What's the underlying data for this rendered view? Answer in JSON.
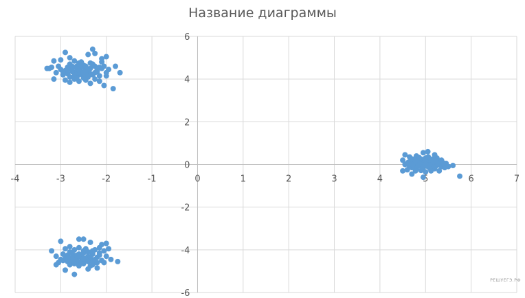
{
  "chart_data": {
    "type": "scatter",
    "title": "Название диаграммы",
    "xlim": [
      -4,
      7
    ],
    "ylim": [
      -6,
      6
    ],
    "x_ticks": [
      -4,
      -3,
      -2,
      -1,
      0,
      1,
      2,
      3,
      4,
      5,
      6,
      7
    ],
    "y_ticks": [
      -6,
      -4,
      -2,
      0,
      2,
      4,
      6
    ],
    "grid": true,
    "marker_color": "#5b9bd5",
    "series": [
      {
        "points": [
          [
            -2.55,
            4.35
          ],
          [
            -2.7,
            4.3
          ],
          [
            -2.45,
            4.45
          ],
          [
            -2.6,
            4.2
          ],
          [
            -2.4,
            4.3
          ],
          [
            -2.75,
            4.5
          ],
          [
            -2.5,
            4.15
          ],
          [
            -2.35,
            4.5
          ],
          [
            -2.85,
            4.25
          ],
          [
            -2.3,
            4.2
          ],
          [
            -2.65,
            4.6
          ],
          [
            -2.9,
            4.4
          ],
          [
            -2.2,
            4.35
          ],
          [
            -2.5,
            4.05
          ],
          [
            -2.8,
            4.1
          ],
          [
            -2.25,
            4.6
          ],
          [
            -3.0,
            4.45
          ],
          [
            -2.1,
            4.5
          ],
          [
            -2.95,
            4.2
          ],
          [
            -2.15,
            4.15
          ],
          [
            -2.6,
            4.75
          ],
          [
            -2.45,
            3.95
          ],
          [
            -2.7,
            4.0
          ],
          [
            -2.35,
            4.75
          ],
          [
            -3.1,
            4.3
          ],
          [
            -2.0,
            4.3
          ],
          [
            -2.55,
            4.55
          ],
          [
            -2.75,
            4.35
          ],
          [
            -2.4,
            4.1
          ],
          [
            -2.65,
            4.25
          ],
          [
            -2.85,
            4.55
          ],
          [
            -2.25,
            4.0
          ],
          [
            -3.05,
            4.6
          ],
          [
            -2.05,
            4.6
          ],
          [
            -2.9,
            3.95
          ],
          [
            -2.15,
            3.9
          ],
          [
            -2.5,
            4.65
          ],
          [
            -2.6,
            3.9
          ],
          [
            -2.8,
            4.7
          ],
          [
            -2.3,
            4.7
          ],
          [
            -3.2,
            4.55
          ],
          [
            -1.95,
            4.45
          ],
          [
            -3.3,
            4.5
          ],
          [
            -1.7,
            4.3
          ],
          [
            -2.9,
            5.25
          ],
          [
            -2.3,
            5.4
          ],
          [
            -2.0,
            5.05
          ],
          [
            -2.8,
            5.0
          ],
          [
            -2.4,
            5.15
          ],
          [
            -3.15,
            4.85
          ],
          [
            -1.8,
            4.6
          ],
          [
            -2.1,
            4.8
          ],
          [
            -2.35,
            3.8
          ],
          [
            -2.05,
            3.7
          ],
          [
            -1.85,
            3.55
          ],
          [
            -3.15,
            4.0
          ],
          [
            -2.8,
            3.85
          ],
          [
            -3.0,
            4.9
          ],
          [
            -2.65,
            4.5
          ],
          [
            -2.45,
            4.6
          ],
          [
            -2.2,
            4.45
          ],
          [
            -2.55,
            4.25
          ],
          [
            -2.7,
            4.15
          ],
          [
            -2.4,
            4.4
          ],
          [
            -2.95,
            4.35
          ],
          [
            -2.75,
            4.6
          ],
          [
            -2.25,
            4.3
          ],
          [
            -2.6,
            4.4
          ],
          [
            -2.5,
            4.3
          ],
          [
            -2.35,
            4.25
          ],
          [
            -2.85,
            4.45
          ],
          [
            -2.15,
            4.55
          ],
          [
            -2.65,
            4.05
          ],
          [
            -2.45,
            4.2
          ],
          [
            -3.25,
            4.5
          ],
          [
            -2.0,
            4.15
          ],
          [
            -2.55,
            4.8
          ],
          [
            -2.25,
            5.2
          ],
          [
            -2.7,
            4.85
          ],
          [
            -2.1,
            4.95
          ]
        ]
      },
      {
        "points": [
          [
            4.9,
            0.05
          ],
          [
            5.0,
            -0.05
          ],
          [
            4.8,
            0.1
          ],
          [
            5.1,
            0.1
          ],
          [
            4.95,
            0.15
          ],
          [
            5.05,
            -0.1
          ],
          [
            4.85,
            -0.05
          ],
          [
            5.15,
            0.0
          ],
          [
            4.75,
            0.0
          ],
          [
            5.2,
            0.05
          ],
          [
            4.7,
            0.15
          ],
          [
            5.25,
            -0.05
          ],
          [
            4.65,
            -0.1
          ],
          [
            5.3,
            0.1
          ],
          [
            4.6,
            0.05
          ],
          [
            5.35,
            -0.1
          ],
          [
            4.9,
            0.25
          ],
          [
            5.0,
            0.3
          ],
          [
            4.8,
            -0.2
          ],
          [
            5.1,
            -0.2
          ],
          [
            4.95,
            -0.15
          ],
          [
            5.05,
            0.2
          ],
          [
            4.85,
            0.2
          ],
          [
            5.15,
            0.25
          ],
          [
            4.75,
            0.25
          ],
          [
            5.2,
            -0.2
          ],
          [
            4.7,
            -0.15
          ],
          [
            5.4,
            0.0
          ],
          [
            4.55,
            0.0
          ],
          [
            5.45,
            0.05
          ],
          [
            4.5,
            0.2
          ],
          [
            5.5,
            -0.1
          ],
          [
            4.55,
            0.45
          ],
          [
            4.95,
            0.55
          ],
          [
            5.05,
            0.6
          ],
          [
            4.65,
            0.35
          ],
          [
            5.25,
            0.3
          ],
          [
            4.8,
            0.4
          ],
          [
            5.2,
            0.45
          ],
          [
            4.6,
            -0.25
          ],
          [
            4.7,
            -0.45
          ],
          [
            5.0,
            -0.35
          ],
          [
            5.3,
            -0.3
          ],
          [
            5.35,
            0.2
          ],
          [
            5.6,
            -0.05
          ],
          [
            5.75,
            -0.55
          ],
          [
            4.5,
            -0.3
          ],
          [
            4.95,
            -0.6
          ],
          [
            4.88,
            0.0
          ],
          [
            5.02,
            0.08
          ],
          [
            4.92,
            -0.12
          ],
          [
            5.12,
            0.15
          ],
          [
            4.78,
            0.18
          ],
          [
            5.08,
            -0.02
          ],
          [
            4.98,
            0.12
          ],
          [
            4.82,
            -0.08
          ],
          [
            5.18,
            -0.12
          ],
          [
            4.72,
            -0.02
          ],
          [
            5.28,
            0.02
          ],
          [
            4.62,
            0.1
          ],
          [
            5.38,
            0.08
          ],
          [
            5.42,
            -0.15
          ],
          [
            4.68,
            0.28
          ],
          [
            5.22,
            0.18
          ],
          [
            4.86,
            0.32
          ],
          [
            5.06,
            0.35
          ],
          [
            4.9,
            -0.28
          ],
          [
            5.12,
            -0.3
          ],
          [
            4.78,
            -0.3
          ],
          [
            5.0,
            0.0
          ]
        ]
      },
      {
        "points": [
          [
            -2.55,
            -4.35
          ],
          [
            -2.7,
            -4.3
          ],
          [
            -2.45,
            -4.45
          ],
          [
            -2.6,
            -4.2
          ],
          [
            -2.4,
            -4.3
          ],
          [
            -2.75,
            -4.5
          ],
          [
            -2.5,
            -4.15
          ],
          [
            -2.35,
            -4.5
          ],
          [
            -2.85,
            -4.25
          ],
          [
            -2.3,
            -4.2
          ],
          [
            -2.65,
            -4.6
          ],
          [
            -2.9,
            -4.4
          ],
          [
            -2.2,
            -4.35
          ],
          [
            -2.5,
            -4.05
          ],
          [
            -2.8,
            -4.1
          ],
          [
            -2.25,
            -4.6
          ],
          [
            -3.0,
            -4.45
          ],
          [
            -2.1,
            -4.5
          ],
          [
            -2.95,
            -4.2
          ],
          [
            -2.15,
            -4.15
          ],
          [
            -2.6,
            -4.75
          ],
          [
            -2.45,
            -3.95
          ],
          [
            -2.7,
            -4.0
          ],
          [
            -2.35,
            -4.75
          ],
          [
            -3.1,
            -4.3
          ],
          [
            -2.0,
            -4.3
          ],
          [
            -2.55,
            -4.55
          ],
          [
            -2.75,
            -4.35
          ],
          [
            -2.4,
            -4.1
          ],
          [
            -2.65,
            -4.25
          ],
          [
            -2.85,
            -4.55
          ],
          [
            -2.25,
            -4.0
          ],
          [
            -3.05,
            -4.6
          ],
          [
            -2.05,
            -4.6
          ],
          [
            -2.9,
            -3.95
          ],
          [
            -2.15,
            -3.9
          ],
          [
            -2.5,
            -4.65
          ],
          [
            -2.6,
            -3.9
          ],
          [
            -2.8,
            -4.7
          ],
          [
            -2.3,
            -4.7
          ],
          [
            -3.2,
            -4.05
          ],
          [
            -1.9,
            -4.45
          ],
          [
            -1.75,
            -4.55
          ],
          [
            -3.0,
            -3.6
          ],
          [
            -2.6,
            -3.5
          ],
          [
            -2.5,
            -3.5
          ],
          [
            -2.0,
            -3.7
          ],
          [
            -2.35,
            -3.65
          ],
          [
            -2.1,
            -3.75
          ],
          [
            -2.9,
            -4.95
          ],
          [
            -2.7,
            -5.15
          ],
          [
            -2.4,
            -4.9
          ],
          [
            -2.2,
            -4.85
          ],
          [
            -3.1,
            -4.7
          ],
          [
            -1.95,
            -3.95
          ],
          [
            -2.05,
            -4.05
          ],
          [
            -2.65,
            -4.45
          ],
          [
            -2.45,
            -4.4
          ],
          [
            -2.55,
            -4.25
          ],
          [
            -2.75,
            -4.15
          ],
          [
            -2.35,
            -4.35
          ],
          [
            -2.85,
            -4.4
          ],
          [
            -2.25,
            -4.45
          ],
          [
            -2.6,
            -4.3
          ],
          [
            -2.5,
            -4.4
          ],
          [
            -2.4,
            -4.55
          ],
          [
            -2.7,
            -4.65
          ],
          [
            -2.3,
            -4.05
          ],
          [
            -2.95,
            -4.5
          ],
          [
            -2.15,
            -4.25
          ],
          [
            -2.8,
            -3.85
          ],
          [
            -2.2,
            -4.6
          ]
        ]
      }
    ]
  },
  "watermark": "РЕШУЕГЭ.РФ"
}
